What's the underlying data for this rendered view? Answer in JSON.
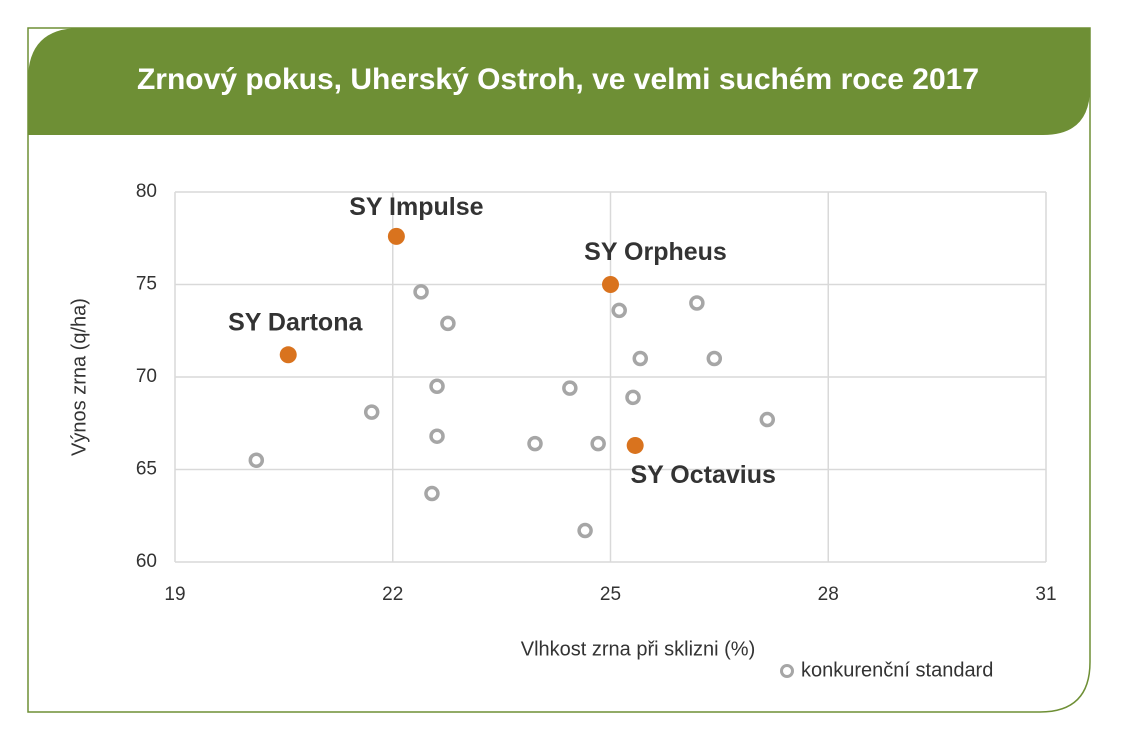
{
  "chart_data": {
    "type": "scatter",
    "title": "Zrnový pokus, Uherský Ostroh, ve velmi suchém roce 2017",
    "x_label": "Vlhkost zrna při sklizni (%)",
    "y_label": "Výnos zrna (q/ha)",
    "xlim": [
      19,
      31
    ],
    "xticks": [
      19,
      22,
      25,
      28,
      31
    ],
    "ylim": [
      60,
      80
    ],
    "yticks": [
      60,
      65,
      70,
      75,
      80
    ],
    "grid": true,
    "legend": "bottom-right",
    "series": [
      {
        "name": "konkurenční standard",
        "color": "#a6a6a6",
        "marker": "hollow",
        "x": [
          20.12,
          21.71,
          22.39,
          22.76,
          22.61,
          22.61,
          22.54,
          23.96,
          24.44,
          24.65,
          24.83,
          25.12,
          25.41,
          25.31,
          26.19,
          26.43,
          27.16
        ],
        "values": [
          65.5,
          68.1,
          74.6,
          72.9,
          69.5,
          66.8,
          63.7,
          66.4,
          69.4,
          61.7,
          66.4,
          73.6,
          71.0,
          68.9,
          74.0,
          71.0,
          67.7
        ]
      },
      {
        "color": "#d9731e",
        "marker": "filled",
        "point_labels": [
          "SY Impulse",
          "SY Orpheus",
          "SY Dartona",
          "SY Octavius"
        ],
        "x": [
          22.05,
          25.0,
          20.56,
          25.34
        ],
        "values": [
          77.6,
          75.0,
          71.2,
          66.3
        ]
      }
    ]
  }
}
